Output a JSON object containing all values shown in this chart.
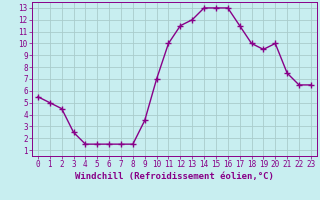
{
  "x": [
    0,
    1,
    2,
    3,
    4,
    5,
    6,
    7,
    8,
    9,
    10,
    11,
    12,
    13,
    14,
    15,
    16,
    17,
    18,
    19,
    20,
    21,
    22,
    23
  ],
  "y": [
    5.5,
    5.0,
    4.5,
    2.5,
    1.5,
    1.5,
    1.5,
    1.5,
    1.5,
    3.5,
    7.0,
    10.0,
    11.5,
    12.0,
    13.0,
    13.0,
    13.0,
    11.5,
    10.0,
    9.5,
    10.0,
    7.5,
    6.5,
    6.5
  ],
  "line_color": "#880088",
  "marker": "+",
  "marker_size": 4,
  "linewidth": 1.0,
  "bg_color": "#c8eef0",
  "grid_color": "#aacccc",
  "xlabel": "Windchill (Refroidissement éolien,°C)",
  "xlabel_fontsize": 6.5,
  "xlabel_color": "#880088",
  "tick_color": "#880088",
  "tick_fontsize": 5.5,
  "xlim": [
    -0.5,
    23.5
  ],
  "ylim": [
    0.5,
    13.5
  ],
  "yticks": [
    1,
    2,
    3,
    4,
    5,
    6,
    7,
    8,
    9,
    10,
    11,
    12,
    13
  ],
  "xticks": [
    0,
    1,
    2,
    3,
    4,
    5,
    6,
    7,
    8,
    9,
    10,
    11,
    12,
    13,
    14,
    15,
    16,
    17,
    18,
    19,
    20,
    21,
    22,
    23
  ]
}
